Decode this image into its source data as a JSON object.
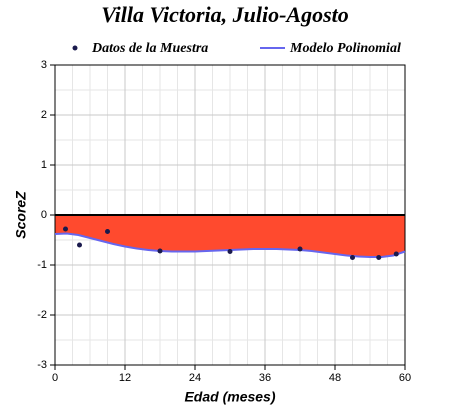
{
  "chart_data": {
    "type": "scatter-polyfit",
    "title": "Villa Victoria, Julio-Agosto",
    "x_label": "Edad (meses)",
    "y_label": "ScoreZ",
    "xlim": [
      0,
      60
    ],
    "xticks": [
      0,
      12,
      24,
      36,
      48,
      60
    ],
    "ylim": [
      -3,
      3
    ],
    "yticks": [
      -3,
      -2,
      -1,
      0,
      1,
      2,
      3
    ],
    "grid": true,
    "points": {
      "name": "Datos de la Muestra",
      "color": "#1a1a4d",
      "x": [
        1.8,
        4.2,
        9,
        18,
        30,
        42,
        51,
        55.5,
        58.5
      ],
      "values": [
        -0.28,
        -0.6,
        -0.33,
        -0.72,
        -0.73,
        -0.68,
        -0.85,
        -0.85,
        -0.78
      ]
    },
    "model": {
      "name": "Modelo Polinomial",
      "color": "#6666ee",
      "fill": "#ff4a2e",
      "x": [
        0,
        2,
        4,
        6,
        8,
        10,
        12,
        14,
        16,
        18,
        20,
        22,
        24,
        26,
        28,
        30,
        32,
        34,
        36,
        38,
        40,
        42,
        44,
        46,
        48,
        50,
        52,
        54,
        56,
        58,
        60
      ],
      "values": [
        -0.38,
        -0.37,
        -0.4,
        -0.46,
        -0.52,
        -0.58,
        -0.63,
        -0.67,
        -0.7,
        -0.72,
        -0.73,
        -0.73,
        -0.73,
        -0.72,
        -0.71,
        -0.7,
        -0.69,
        -0.68,
        -0.68,
        -0.68,
        -0.69,
        -0.7,
        -0.72,
        -0.75,
        -0.78,
        -0.81,
        -0.83,
        -0.84,
        -0.84,
        -0.81,
        -0.73
      ]
    }
  }
}
